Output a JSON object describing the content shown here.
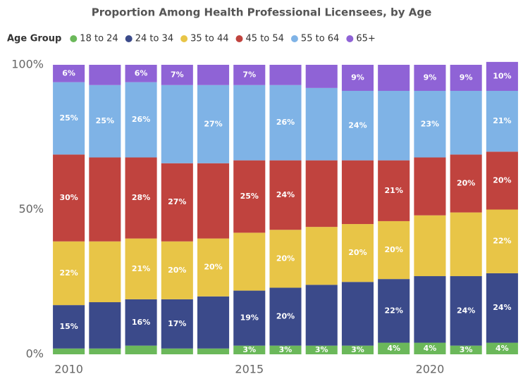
{
  "chart_data": {
    "type": "stacked_bar",
    "title": "Proportion Among Health Professional Licensees, by Age",
    "legend_title": "Age Group",
    "categories": [
      "2010",
      null,
      null,
      null,
      null,
      "2015",
      null,
      null,
      null,
      null,
      "2020",
      null,
      null
    ],
    "series": [
      {
        "name": "18 to 24",
        "color": "#6bb85a",
        "values": [
          2,
          2,
          3,
          2,
          2,
          3,
          3,
          3,
          3,
          4,
          4,
          3,
          4
        ],
        "value_labels": [
          null,
          null,
          null,
          null,
          null,
          "3%",
          "3%",
          "3%",
          "3%",
          "4%",
          "4%",
          "3%",
          "4%"
        ]
      },
      {
        "name": "24 to 34",
        "color": "#3b4a8a",
        "values": [
          15,
          16,
          16,
          17,
          18,
          19,
          20,
          21,
          22,
          22,
          23,
          24,
          24
        ],
        "value_labels": [
          "15%",
          null,
          "16%",
          "17%",
          null,
          "19%",
          "20%",
          null,
          null,
          "22%",
          null,
          "24%",
          "24%"
        ]
      },
      {
        "name": "35 to 44",
        "color": "#e8c547",
        "values": [
          22,
          21,
          21,
          20,
          20,
          20,
          20,
          20,
          20,
          20,
          21,
          22,
          22
        ],
        "value_labels": [
          "22%",
          null,
          "21%",
          "20%",
          "20%",
          null,
          "20%",
          null,
          "20%",
          "20%",
          null,
          null,
          "22%"
        ]
      },
      {
        "name": "45 to 54",
        "color": "#c0433e",
        "values": [
          30,
          29,
          28,
          27,
          26,
          25,
          24,
          23,
          22,
          21,
          20,
          20,
          20
        ],
        "value_labels": [
          "30%",
          null,
          "28%",
          "27%",
          null,
          "25%",
          "24%",
          null,
          null,
          "21%",
          null,
          "20%",
          "20%"
        ]
      },
      {
        "name": "55 to 64",
        "color": "#7fb3e6",
        "values": [
          25,
          25,
          26,
          27,
          27,
          26,
          26,
          25,
          24,
          24,
          23,
          22,
          21
        ],
        "value_labels": [
          "25%",
          "25%",
          "26%",
          null,
          "27%",
          null,
          "26%",
          null,
          "24%",
          null,
          "23%",
          null,
          "21%"
        ]
      },
      {
        "name": "65+",
        "color": "#8f63d6",
        "values": [
          6,
          7,
          6,
          7,
          7,
          7,
          7,
          8,
          9,
          9,
          9,
          9,
          10
        ],
        "value_labels": [
          "6%",
          null,
          "6%",
          "7%",
          null,
          "7%",
          null,
          null,
          "9%",
          null,
          "9%",
          "9%",
          "10%"
        ]
      }
    ],
    "ylim": [
      0,
      100
    ],
    "yticks": [
      {
        "value": 0,
        "label": "0%"
      },
      {
        "value": 50,
        "label": "50%"
      },
      {
        "value": 100,
        "label": "100%"
      }
    ],
    "grid": false
  }
}
